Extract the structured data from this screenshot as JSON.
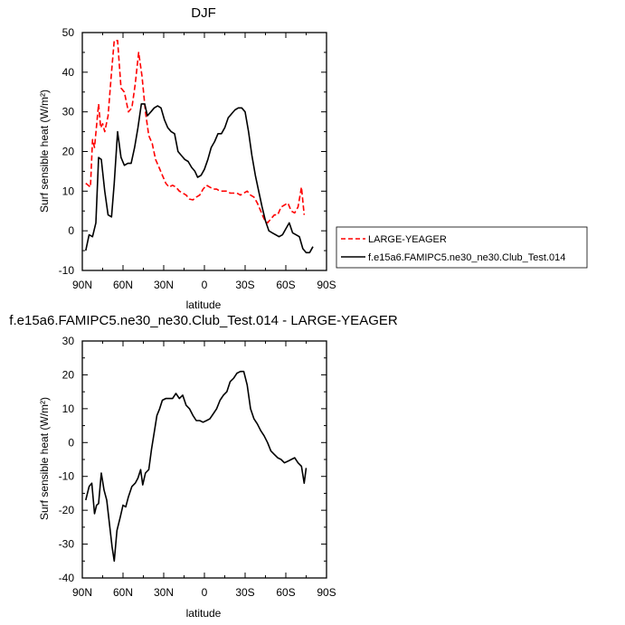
{
  "chart_data": [
    {
      "type": "line",
      "title": "DJF",
      "xlabel": "latitude",
      "ylabel": "Surf sensible heat (W/m²)",
      "xticks": [
        {
          "value": 90,
          "label": "90N"
        },
        {
          "value": 60,
          "label": "60N"
        },
        {
          "value": 30,
          "label": "30N"
        },
        {
          "value": 0,
          "label": "0"
        },
        {
          "value": -30,
          "label": "30S"
        },
        {
          "value": -60,
          "label": "60S"
        },
        {
          "value": -90,
          "label": "90S"
        }
      ],
      "xlim": [
        90,
        -90
      ],
      "ylim": [
        -10,
        50
      ],
      "yticks": [
        -10,
        0,
        10,
        20,
        30,
        40,
        50
      ],
      "legend": "right",
      "series": [
        {
          "name": "LARGE-YEAGER",
          "color": "#ff0000",
          "dash": true,
          "points": [
            [
              87.5,
              12
            ],
            [
              84,
              11
            ],
            [
              82.5,
              23
            ],
            [
              81,
              21
            ],
            [
              78,
              32
            ],
            [
              76.5,
              26
            ],
            [
              75,
              27
            ],
            [
              73.5,
              25
            ],
            [
              71,
              29
            ],
            [
              68.5,
              40
            ],
            [
              66.5,
              48
            ],
            [
              64,
              48
            ],
            [
              61.5,
              36
            ],
            [
              59,
              35
            ],
            [
              56,
              30
            ],
            [
              53.5,
              31
            ],
            [
              51,
              37
            ],
            [
              48.5,
              45
            ],
            [
              46,
              39
            ],
            [
              43.5,
              30
            ],
            [
              41,
              24
            ],
            [
              38.5,
              22
            ],
            [
              36,
              18
            ],
            [
              33.5,
              16
            ],
            [
              31,
              14
            ],
            [
              28.5,
              12
            ],
            [
              26,
              11
            ],
            [
              23.5,
              11.5
            ],
            [
              21,
              11
            ],
            [
              18.5,
              10
            ],
            [
              16,
              9.5
            ],
            [
              13.5,
              9
            ],
            [
              11,
              8
            ],
            [
              8.5,
              7.8
            ],
            [
              6,
              8.5
            ],
            [
              3.5,
              9
            ],
            [
              1,
              10.5
            ],
            [
              -1.5,
              11.5
            ],
            [
              -4,
              11
            ],
            [
              -6.5,
              10.5
            ],
            [
              -9,
              10.5
            ],
            [
              -11.5,
              10
            ],
            [
              -14,
              10
            ],
            [
              -16.5,
              10
            ],
            [
              -19,
              9.5
            ],
            [
              -21.5,
              9.5
            ],
            [
              -24,
              9.5
            ],
            [
              -26.5,
              9
            ],
            [
              -29,
              9.5
            ],
            [
              -31.5,
              10
            ],
            [
              -34,
              9
            ],
            [
              -36.5,
              8.5
            ],
            [
              -39,
              7
            ],
            [
              -41.5,
              5
            ],
            [
              -44,
              3
            ],
            [
              -46.5,
              2
            ],
            [
              -49,
              3
            ],
            [
              -51.5,
              4
            ],
            [
              -54,
              4
            ],
            [
              -56.5,
              6
            ],
            [
              -59,
              6.5
            ],
            [
              -61.5,
              7
            ],
            [
              -64,
              5
            ],
            [
              -66.5,
              4.5
            ],
            [
              -69,
              6
            ],
            [
              -71.5,
              11
            ],
            [
              -73.5,
              4
            ]
          ]
        },
        {
          "name": "f.e15a6.FAMIPC5.ne30_ne30.Club_Test.014",
          "color": "#000000",
          "dash": false,
          "points": [
            [
              87.5,
              -5
            ],
            [
              85,
              -1
            ],
            [
              82.5,
              -1.5
            ],
            [
              80,
              2
            ],
            [
              78,
              18.5
            ],
            [
              76,
              18
            ],
            [
              73.5,
              10
            ],
            [
              71,
              4
            ],
            [
              68.5,
              3.5
            ],
            [
              66.5,
              12
            ],
            [
              64,
              25
            ],
            [
              61.5,
              18.5
            ],
            [
              59,
              16.5
            ],
            [
              56.5,
              17
            ],
            [
              54,
              17
            ],
            [
              51.5,
              21
            ],
            [
              49,
              26
            ],
            [
              46.5,
              32
            ],
            [
              44,
              32
            ],
            [
              42,
              29
            ],
            [
              39.5,
              30
            ],
            [
              37,
              31
            ],
            [
              34.5,
              31.5
            ],
            [
              32,
              31
            ],
            [
              29.5,
              28
            ],
            [
              27,
              26
            ],
            [
              24.5,
              25
            ],
            [
              22,
              24.5
            ],
            [
              19.5,
              20
            ],
            [
              17,
              19
            ],
            [
              14.5,
              18
            ],
            [
              12,
              17.5
            ],
            [
              9.5,
              16
            ],
            [
              7,
              15
            ],
            [
              5,
              13.5
            ],
            [
              2.5,
              14
            ],
            [
              0,
              15.5
            ],
            [
              -2.5,
              18
            ],
            [
              -5,
              21
            ],
            [
              -7.5,
              22.5
            ],
            [
              -10,
              24.5
            ],
            [
              -12.5,
              24.5
            ],
            [
              -15,
              26
            ],
            [
              -17.5,
              28.5
            ],
            [
              -20,
              29.5
            ],
            [
              -22.5,
              30.5
            ],
            [
              -25,
              31
            ],
            [
              -27.5,
              31
            ],
            [
              -30,
              30
            ],
            [
              -32.5,
              25
            ],
            [
              -35,
              19
            ],
            [
              -37.5,
              14
            ],
            [
              -40,
              10
            ],
            [
              -42.5,
              6
            ],
            [
              -45,
              2.5
            ],
            [
              -47.5,
              0
            ],
            [
              -50,
              -0.5
            ],
            [
              -52.5,
              -1
            ],
            [
              -55,
              -1.5
            ],
            [
              -57.5,
              -1
            ],
            [
              -60,
              0.5
            ],
            [
              -62.5,
              2
            ],
            [
              -65,
              -0.5
            ],
            [
              -67.5,
              -1
            ],
            [
              -70,
              -1.5
            ],
            [
              -72.5,
              -4.5
            ],
            [
              -75,
              -5.5
            ],
            [
              -77.5,
              -5.5
            ],
            [
              -80,
              -4
            ]
          ]
        }
      ]
    },
    {
      "type": "line",
      "title": "f.e15a6.FAMIPC5.ne30_ne30.Club_Test.014 - LARGE-YEAGER",
      "xlabel": "latitude",
      "ylabel": "Surf sensible heat (W/m²)",
      "xticks": [
        {
          "value": 90,
          "label": "90N"
        },
        {
          "value": 60,
          "label": "60N"
        },
        {
          "value": 30,
          "label": "30N"
        },
        {
          "value": 0,
          "label": "0"
        },
        {
          "value": -30,
          "label": "30S"
        },
        {
          "value": -60,
          "label": "60S"
        },
        {
          "value": -90,
          "label": "90S"
        }
      ],
      "xlim": [
        90,
        -90
      ],
      "ylim": [
        -40,
        30
      ],
      "yticks": [
        -40,
        -30,
        -20,
        -10,
        0,
        10,
        20,
        30
      ],
      "series": [
        {
          "color": "#000000",
          "dash": false,
          "points": [
            [
              87.5,
              -17
            ],
            [
              85,
              -13
            ],
            [
              83,
              -12
            ],
            [
              81,
              -21
            ],
            [
              79.5,
              -18.5
            ],
            [
              78,
              -18
            ],
            [
              76,
              -9
            ],
            [
              74,
              -14
            ],
            [
              72,
              -17
            ],
            [
              70,
              -24
            ],
            [
              68,
              -31
            ],
            [
              66.5,
              -35
            ],
            [
              64.5,
              -26
            ],
            [
              62,
              -22
            ],
            [
              60,
              -18.5
            ],
            [
              58,
              -19
            ],
            [
              56,
              -16
            ],
            [
              53.5,
              -13
            ],
            [
              51,
              -12
            ],
            [
              49,
              -10.5
            ],
            [
              47,
              -8
            ],
            [
              45.5,
              -12.5
            ],
            [
              43.5,
              -9
            ],
            [
              41,
              -8
            ],
            [
              39,
              -2
            ],
            [
              37,
              3
            ],
            [
              35,
              8
            ],
            [
              33,
              10
            ],
            [
              31,
              12.5
            ],
            [
              28.5,
              13
            ],
            [
              26,
              13
            ],
            [
              23.5,
              13
            ],
            [
              21,
              14.5
            ],
            [
              18.5,
              13
            ],
            [
              16,
              14
            ],
            [
              13.5,
              11
            ],
            [
              11,
              10
            ],
            [
              8.5,
              8
            ],
            [
              6,
              6.5
            ],
            [
              3.5,
              6.5
            ],
            [
              1,
              6
            ],
            [
              -1.5,
              6.5
            ],
            [
              -4,
              7
            ],
            [
              -6.5,
              8.5
            ],
            [
              -9,
              10
            ],
            [
              -11.5,
              12.5
            ],
            [
              -14,
              14
            ],
            [
              -16.5,
              15
            ],
            [
              -19,
              18
            ],
            [
              -21.5,
              19
            ],
            [
              -24,
              20.5
            ],
            [
              -26.5,
              21
            ],
            [
              -29,
              21
            ],
            [
              -31.5,
              17
            ],
            [
              -34,
              10
            ],
            [
              -36.5,
              7
            ],
            [
              -39,
              5.5
            ],
            [
              -41.5,
              3.5
            ],
            [
              -44,
              2
            ],
            [
              -46.5,
              0
            ],
            [
              -49,
              -2.5
            ],
            [
              -51.5,
              -3.5
            ],
            [
              -54,
              -4.5
            ],
            [
              -56.5,
              -5
            ],
            [
              -59,
              -6
            ],
            [
              -61.5,
              -5.5
            ],
            [
              -64,
              -5
            ],
            [
              -66.5,
              -4.5
            ],
            [
              -69,
              -6
            ],
            [
              -71.5,
              -7
            ],
            [
              -73.5,
              -12
            ],
            [
              -75,
              -7.5
            ]
          ]
        }
      ]
    }
  ]
}
